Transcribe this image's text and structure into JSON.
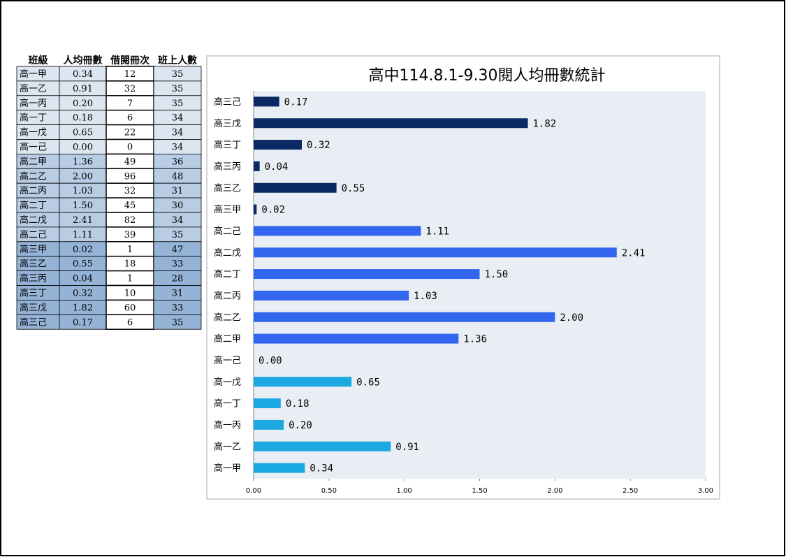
{
  "table": {
    "headers": [
      "班級",
      "人均冊數",
      "借閱冊次",
      "班上人數"
    ],
    "rows": [
      [
        "高一甲",
        "0.34",
        "12",
        "35"
      ],
      [
        "高一乙",
        "0.91",
        "32",
        "35"
      ],
      [
        "高一丙",
        "0.20",
        "7",
        "35"
      ],
      [
        "高一丁",
        "0.18",
        "6",
        "34"
      ],
      [
        "高一戊",
        "0.65",
        "22",
        "34"
      ],
      [
        "高一己",
        "0.00",
        "0",
        "34"
      ],
      [
        "高二甲",
        "1.36",
        "49",
        "36"
      ],
      [
        "高二乙",
        "2.00",
        "96",
        "48"
      ],
      [
        "高二丙",
        "1.03",
        "32",
        "31"
      ],
      [
        "高二丁",
        "1.50",
        "45",
        "30"
      ],
      [
        "高二戊",
        "2.41",
        "82",
        "34"
      ],
      [
        "高二己",
        "1.11",
        "39",
        "35"
      ],
      [
        "高三甲",
        "0.02",
        "1",
        "47"
      ],
      [
        "高三乙",
        "0.55",
        "18",
        "33"
      ],
      [
        "高三丙",
        "0.04",
        "1",
        "28"
      ],
      [
        "高三丁",
        "0.32",
        "10",
        "31"
      ],
      [
        "高三戊",
        "1.82",
        "60",
        "33"
      ],
      [
        "高三己",
        "0.17",
        "6",
        "35"
      ]
    ]
  },
  "chart_data": {
    "type": "hbar",
    "title": "高中114.8.1-9.30閱人均冊數統計",
    "categories": [
      "高三己",
      "高三戊",
      "高三丁",
      "高三丙",
      "高三乙",
      "高三甲",
      "高二己",
      "高二戊",
      "高二丁",
      "高二丙",
      "高二乙",
      "高二甲",
      "高一己",
      "高一戊",
      "高一丁",
      "高一丙",
      "高一乙",
      "高一甲"
    ],
    "values": [
      0.17,
      1.82,
      0.32,
      0.04,
      0.55,
      0.02,
      1.11,
      2.41,
      1.5,
      1.03,
      2.0,
      1.36,
      0.0,
      0.65,
      0.18,
      0.2,
      0.91,
      0.34
    ],
    "value_labels": [
      "0.17",
      "1.82",
      "0.32",
      "0.04",
      "0.55",
      "0.02",
      "1.11",
      "2.41",
      "1.50",
      "1.03",
      "2.00",
      "1.36",
      "0.00",
      "0.65",
      "0.18",
      "0.20",
      "0.91",
      "0.34"
    ],
    "colors": [
      "#0b2a63",
      "#0b2a63",
      "#0b2a63",
      "#0b2a63",
      "#0b2a63",
      "#0b2a63",
      "#3366ee",
      "#3366ee",
      "#3366ee",
      "#3366ee",
      "#3366ee",
      "#3366ee",
      "#1ca8e0",
      "#1ca8e0",
      "#1ca8e0",
      "#1ca8e0",
      "#1ca8e0",
      "#1ca8e0"
    ],
    "xlim": [
      0,
      3
    ],
    "xticks": [
      {
        "value": 0,
        "label": "0.00"
      },
      {
        "value": 0.5,
        "label": "0.50"
      },
      {
        "value": 1,
        "label": "1.00"
      },
      {
        "value": 1.5,
        "label": "1.50"
      },
      {
        "value": 2,
        "label": "2.00"
      },
      {
        "value": 2.5,
        "label": "2.50"
      },
      {
        "value": 3,
        "label": "3.00"
      }
    ]
  }
}
